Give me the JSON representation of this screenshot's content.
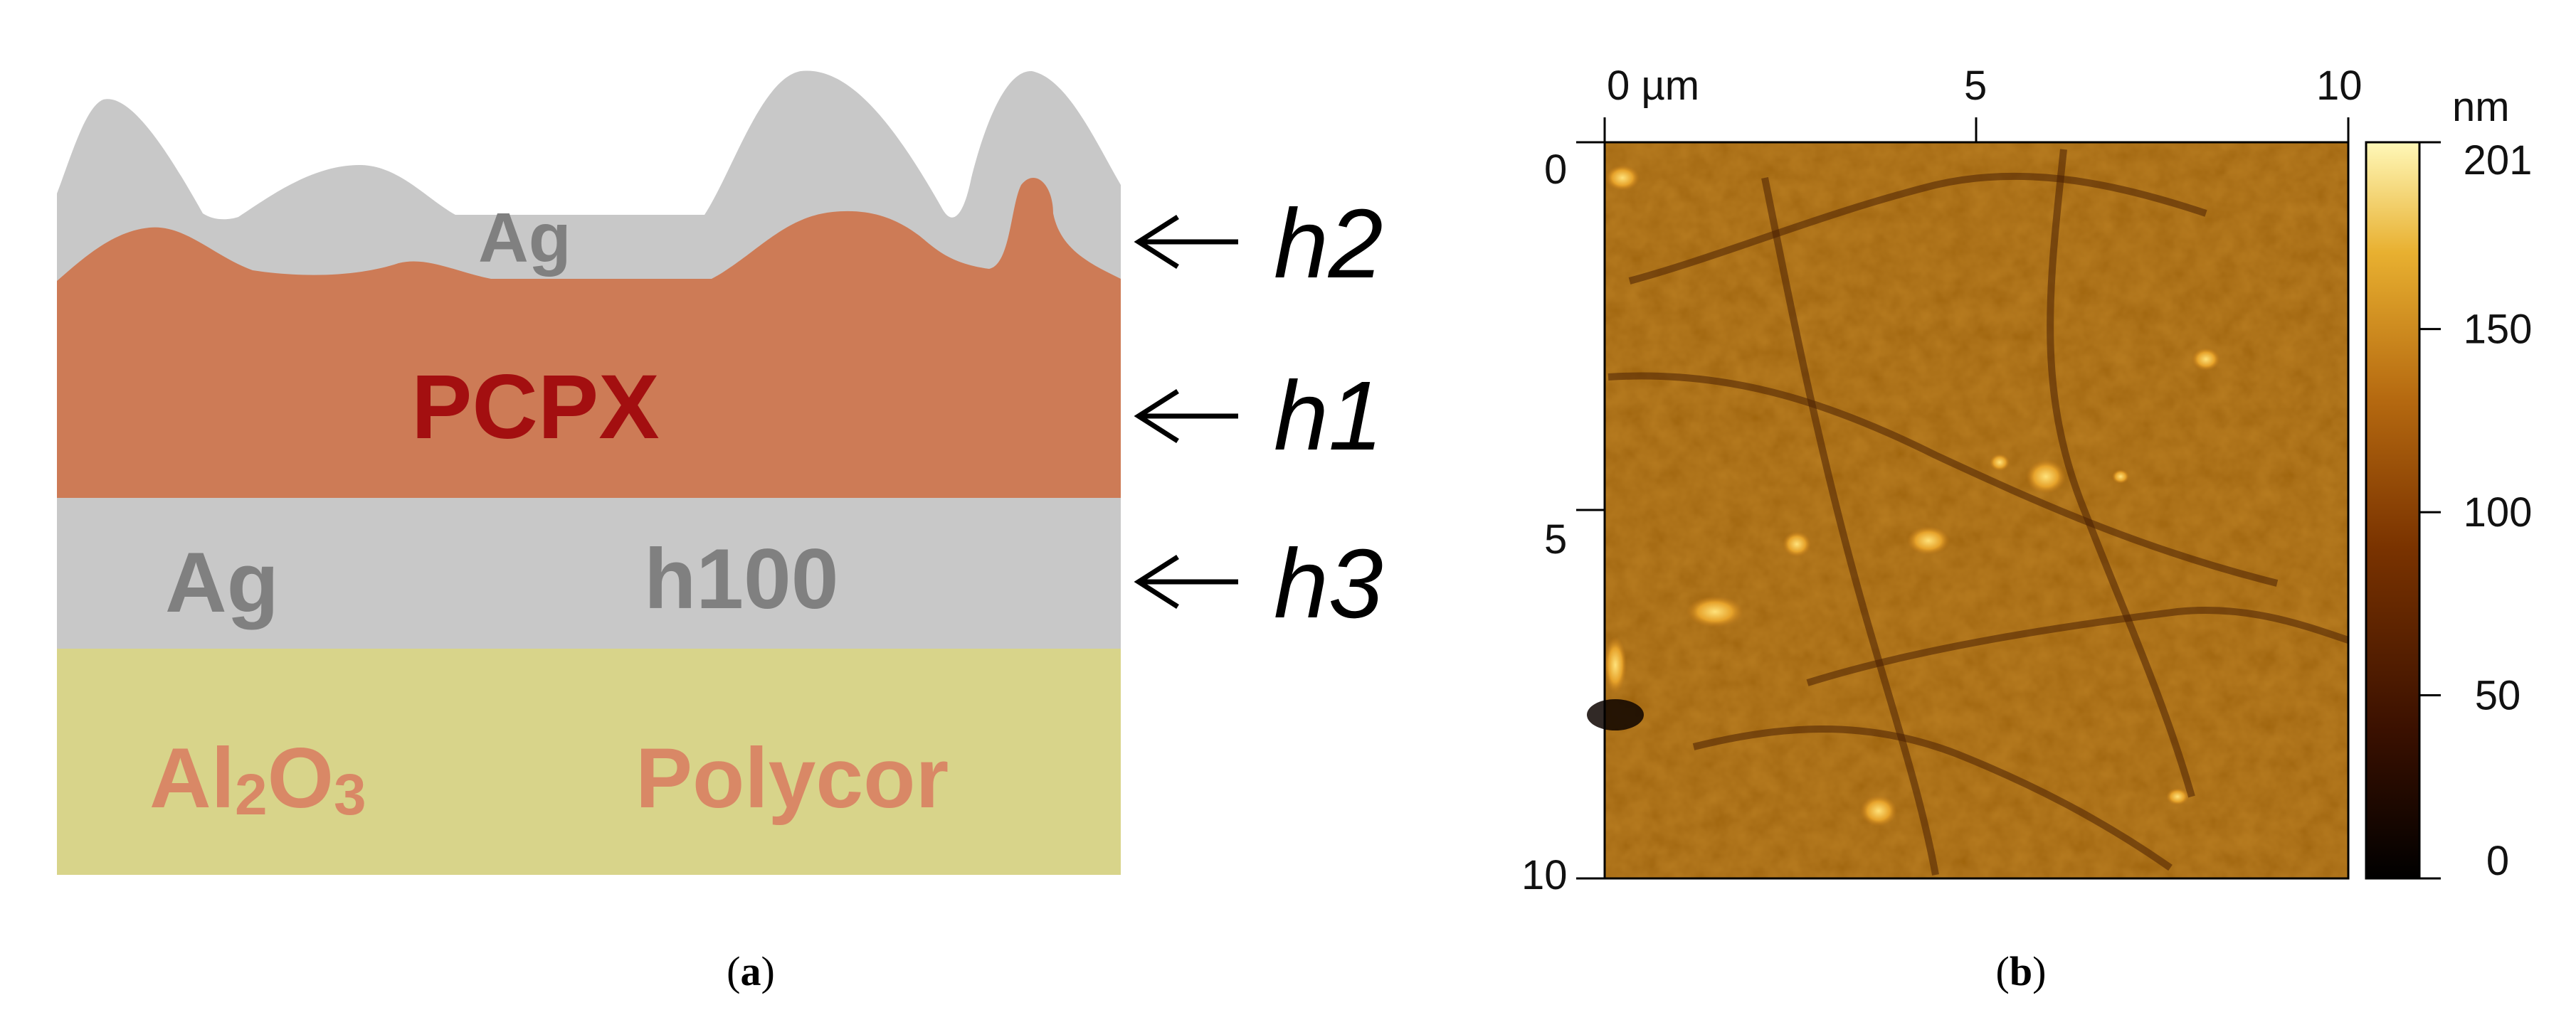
{
  "panel_a": {
    "caption_open": "(",
    "caption_letter": "a",
    "caption_close": ")",
    "layers": {
      "ag_top": "Ag",
      "pcpx": "PCPX",
      "ag_bottom_left": "Ag",
      "ag_bottom_right": "h100",
      "substrate_left_al": "Al",
      "substrate_left_sub2": "2",
      "substrate_left_o": "O",
      "substrate_left_sub3": "3",
      "substrate_right": "Polycor"
    },
    "arrows": [
      {
        "label": "h2",
        "target": "Ag top layer"
      },
      {
        "label": "h1",
        "target": "PCPX layer"
      },
      {
        "label": "h3",
        "target": "Ag bottom layer"
      }
    ],
    "colors": {
      "ag": "#c8c8c8",
      "pcpx": "#cd7b56",
      "substrate": "#d8d48a",
      "pcpx_text": "#a30f10",
      "ag_text": "#808080",
      "substrate_text": "#d98866"
    }
  },
  "panel_b": {
    "caption_open": "(",
    "caption_letter": "b",
    "caption_close": ")",
    "x_ticks": [
      "0 µm",
      "5",
      "10"
    ],
    "y_ticks": [
      "0",
      "5",
      "10"
    ],
    "colorbar": {
      "unit": "nm",
      "ticks": [
        "201",
        "150",
        "100",
        "50",
        "0"
      ],
      "min": 0,
      "max": 201,
      "colors": [
        "#000000",
        "#3a1000",
        "#7a3300",
        "#b56910",
        "#e8b030",
        "#fff8b8"
      ]
    }
  }
}
